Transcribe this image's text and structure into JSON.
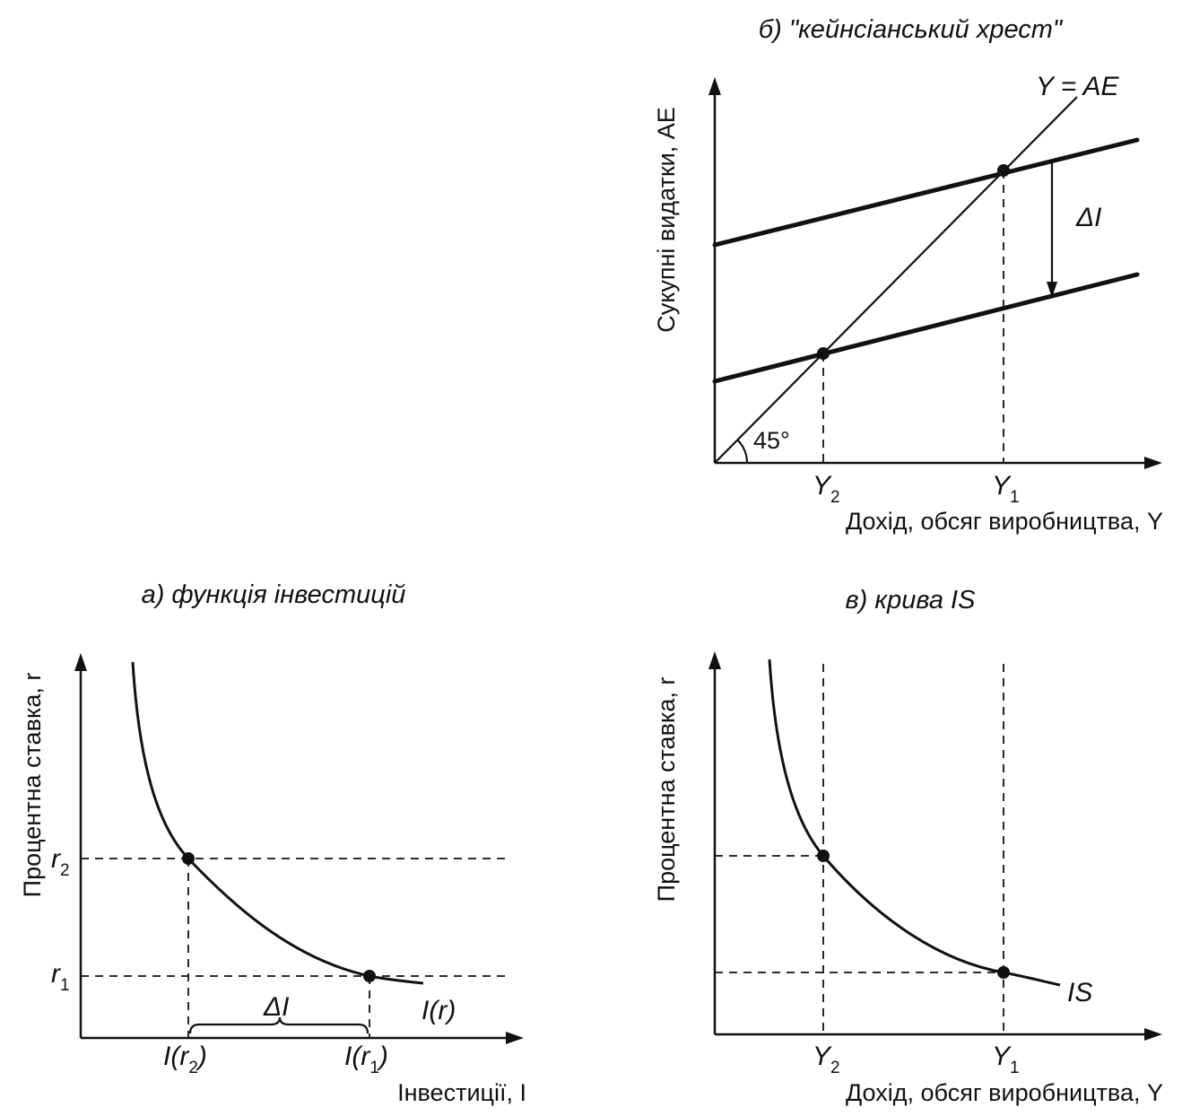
{
  "panel_a": {
    "title": "а) функція інвестицій",
    "y_axis_label": "Процентна ставка, r",
    "x_axis_label": "Інвестиції, I",
    "tick_r2_main": "r",
    "tick_r2_sub": "2",
    "tick_r1_main": "r",
    "tick_r1_sub": "1",
    "tick_Ir2_pre": "I(r",
    "tick_Ir2_sub": "2",
    "tick_Ir2_post": ")",
    "tick_Ir1_pre": "I(r",
    "tick_Ir1_sub": "1",
    "tick_Ir1_post": ")",
    "delta_label": "ΔI",
    "curve_label": "I(r)"
  },
  "panel_b": {
    "title": "б) \"кейнсіанський хрест\"",
    "y_axis_label": "Сукупні видатки, AE",
    "x_axis_label": "Дохід, обсяг виробництва, Y",
    "line_label": "Y = AE",
    "delta_label": "ΔI",
    "angle_label": "45°",
    "tick_y2_main": "Y",
    "tick_y2_sub": "2",
    "tick_y1_main": "Y",
    "tick_y1_sub": "1"
  },
  "panel_c": {
    "title": "в) крива IS",
    "y_axis_label": "Процентна ставка, r",
    "x_axis_label": "Дохід, обсяг виробництва, Y",
    "curve_label": "IS",
    "tick_y2_main": "Y",
    "tick_y2_sub": "2",
    "tick_y1_main": "Y",
    "tick_y1_sub": "1"
  }
}
